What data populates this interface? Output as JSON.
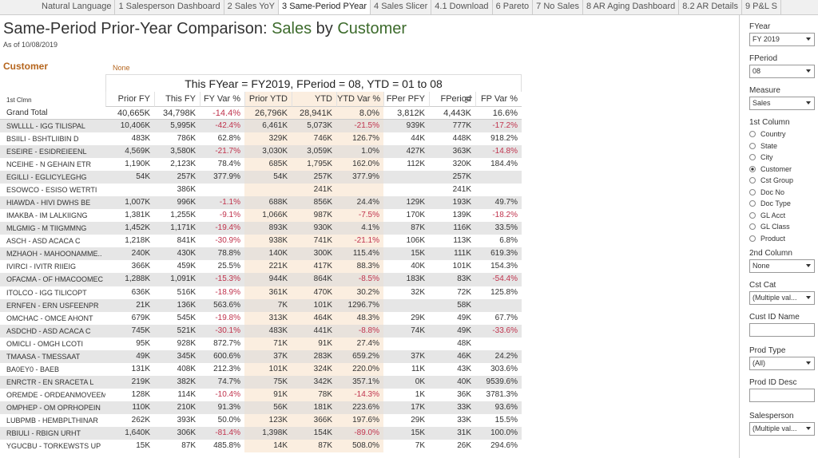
{
  "tabs": [
    "Natural Language",
    "1 Salesperson Dashboard",
    "2 Sales YoY",
    "3 Same-Period PYear",
    "4 Sales Slicer",
    "4.1 Download",
    "6 Pareto",
    "7 No Sales",
    "8 AR Aging Dashboard",
    "8.2 AR Details",
    "9 P&L S"
  ],
  "active_tab": "3 Same-Period PYear",
  "header": {
    "title": "Same-Period Prior-Year Comparison:",
    "measure": "Sales",
    "by": "by",
    "dimension": "Customer",
    "subtitle": "As of 10/08/2019",
    "dimension_label": "Customer",
    "second_label": "None"
  },
  "table": {
    "banner": "This FYear = FY2019,  FPeriod = 08,  YTD = 01 to 08",
    "row_header": "1st Clmn",
    "columns": [
      "Prior FY",
      "This FY",
      "FY Var %",
      "Prior YTD",
      "YTD",
      "YTD Var %",
      "FPer PFY",
      "FPeriod",
      "FP Var %"
    ],
    "rows": [
      [
        "Grand Total",
        "40,665K",
        "34,798K",
        "-14.4%",
        "26,796K",
        "28,941K",
        "8.0%",
        "3,812K",
        "4,443K",
        "16.6%"
      ],
      [
        "SWLLLL  -  IGG TILISPAL",
        "10,406K",
        "5,995K",
        "-42.4%",
        "6,461K",
        "5,073K",
        "-21.5%",
        "939K",
        "777K",
        "-17.2%"
      ],
      [
        "BSIILI  -  BSHTLIIBIN D",
        "483K",
        "786K",
        "62.8%",
        "329K",
        "746K",
        "126.7%",
        "44K",
        "448K",
        "918.2%"
      ],
      [
        "ESEIRE  -  ESIDREIEENL",
        "4,569K",
        "3,580K",
        "-21.7%",
        "3,030K",
        "3,059K",
        "1.0%",
        "427K",
        "363K",
        "-14.8%"
      ],
      [
        "NCEIHE  -  N GEHAIN ETR",
        "1,190K",
        "2,123K",
        "78.4%",
        "685K",
        "1,795K",
        "162.0%",
        "112K",
        "320K",
        "184.4%"
      ],
      [
        "EGILLI  -  EGLICYLEGHG",
        "54K",
        "257K",
        "377.9%",
        "54K",
        "257K",
        "377.9%",
        null,
        "257K",
        null
      ],
      [
        "ESOWCO  -  ESISO WETRTI",
        null,
        "386K",
        null,
        null,
        "241K",
        null,
        null,
        "241K",
        null
      ],
      [
        "HIAWDA  -  HIVI DWHS BE",
        "1,007K",
        "996K",
        "-1.1%",
        "688K",
        "856K",
        "24.4%",
        "129K",
        "193K",
        "49.7%"
      ],
      [
        "IMAKBA  -  IM LALKIIGNG",
        "1,381K",
        "1,255K",
        "-9.1%",
        "1,066K",
        "987K",
        "-7.5%",
        "170K",
        "139K",
        "-18.2%"
      ],
      [
        "MLGMIG  -  M TIIGMMNG",
        "1,452K",
        "1,171K",
        "-19.4%",
        "893K",
        "930K",
        "4.1%",
        "87K",
        "116K",
        "33.5%"
      ],
      [
        "ASCH  -  ASD ACACA C",
        "1,218K",
        "841K",
        "-30.9%",
        "938K",
        "741K",
        "-21.1%",
        "106K",
        "113K",
        "6.8%"
      ],
      [
        "MZHAOH  -  MAHOONAMME..",
        "240K",
        "430K",
        "78.8%",
        "140K",
        "300K",
        "115.4%",
        "15K",
        "111K",
        "619.3%"
      ],
      [
        "IVIRCI  -  IVITR RIIEIG",
        "366K",
        "459K",
        "25.5%",
        "221K",
        "417K",
        "88.3%",
        "40K",
        "101K",
        "154.3%"
      ],
      [
        "OFACMA  -  OF HMACOOMEC",
        "1,288K",
        "1,091K",
        "-15.3%",
        "944K",
        "864K",
        "-8.5%",
        "183K",
        "83K",
        "-54.4%"
      ],
      [
        "ITOLCO  -  IGG TILICOPT",
        "636K",
        "516K",
        "-18.9%",
        "361K",
        "470K",
        "30.2%",
        "32K",
        "72K",
        "125.8%"
      ],
      [
        "ERNFEN  -  ERN USFEENPR",
        "21K",
        "136K",
        "563.6%",
        "7K",
        "101K",
        "1296.7%",
        null,
        "58K",
        null
      ],
      [
        "OMCHAC  -  OMCE AHONT",
        "679K",
        "545K",
        "-19.8%",
        "313K",
        "464K",
        "48.3%",
        "29K",
        "49K",
        "67.7%"
      ],
      [
        "ASDCHD  -  ASD ACACA C",
        "745K",
        "521K",
        "-30.1%",
        "483K",
        "441K",
        "-8.8%",
        "74K",
        "49K",
        "-33.6%"
      ],
      [
        "OMICLI  -  OMGH LCOTI",
        "95K",
        "928K",
        "872.7%",
        "71K",
        "91K",
        "27.4%",
        null,
        "48K",
        null
      ],
      [
        "TMAASA  -  TMESSAAT",
        "49K",
        "345K",
        "600.6%",
        "37K",
        "283K",
        "659.2%",
        "37K",
        "46K",
        "24.2%"
      ],
      [
        "BA0EY0  -  BAEB",
        "131K",
        "408K",
        "212.3%",
        "101K",
        "324K",
        "220.0%",
        "11K",
        "43K",
        "303.6%"
      ],
      [
        "ENRCTR  -  EN SRACETA L",
        "219K",
        "382K",
        "74.7%",
        "75K",
        "342K",
        "357.1%",
        "0K",
        "40K",
        "9539.6%"
      ],
      [
        "OREMDE  -  ORDEANMOVEEM",
        "128K",
        "114K",
        "-10.4%",
        "91K",
        "78K",
        "-14.3%",
        "1K",
        "36K",
        "3781.3%"
      ],
      [
        "OMPHEP  -  OM OPRHOPEIN",
        "110K",
        "210K",
        "91.3%",
        "56K",
        "181K",
        "223.6%",
        "17K",
        "33K",
        "93.6%"
      ],
      [
        "LUBPMB  -  HEMBPLTHINAR",
        "262K",
        "393K",
        "50.0%",
        "123K",
        "366K",
        "197.6%",
        "29K",
        "33K",
        "15.5%"
      ],
      [
        "RBIULI  -  RBIGN URHT",
        "1,640K",
        "306K",
        "-81.4%",
        "1,398K",
        "154K",
        "-89.0%",
        "15K",
        "31K",
        "100.0%"
      ],
      [
        "YGUCBU  -  TORKEWSTS UP",
        "15K",
        "87K",
        "485.8%",
        "14K",
        "87K",
        "508.0%",
        "7K",
        "26K",
        "294.6%"
      ]
    ]
  },
  "filters": [
    {
      "label": "FYear",
      "value": "FY 2019"
    },
    {
      "label": "FPeriod",
      "value": "08"
    },
    {
      "label": "Measure",
      "value": "Sales"
    },
    {
      "label": "1st Column",
      "options": [
        "Country",
        "State",
        "City",
        "Customer",
        "Cst Group",
        "Doc No",
        "Doc Type",
        "GL Acct",
        "GL Class",
        "Product"
      ],
      "selected": "Customer"
    },
    {
      "label": "2nd Column",
      "value": "None"
    },
    {
      "label": "Cst Cat",
      "value": "(Multiple val..."
    },
    {
      "label": "Cust ID Name"
    },
    {
      "label": "Prod Type",
      "value": "(All)"
    },
    {
      "label": "Prod ID Desc"
    },
    {
      "label": "Salesperson",
      "value": "(Multiple val..."
    }
  ]
}
